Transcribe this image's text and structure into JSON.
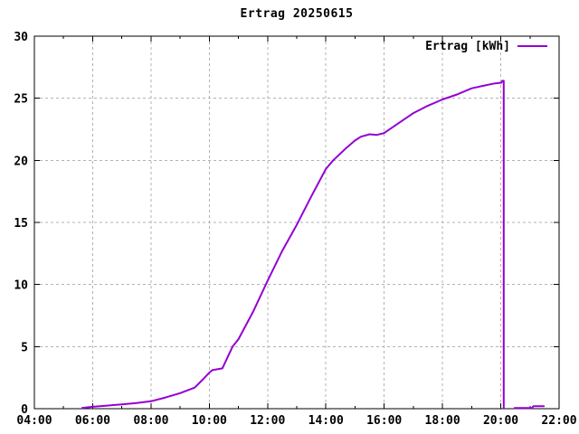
{
  "chart_data": {
    "type": "line",
    "title": "Ertrag 20250615",
    "xlabel": "",
    "ylabel": "",
    "xlim": [
      4,
      22
    ],
    "ylim": [
      0,
      30
    ],
    "grid": true,
    "x_ticks": [
      {
        "h": 4,
        "label": "04:00"
      },
      {
        "h": 6,
        "label": "06:00"
      },
      {
        "h": 8,
        "label": "08:00"
      },
      {
        "h": 10,
        "label": "10:00"
      },
      {
        "h": 12,
        "label": "12:00"
      },
      {
        "h": 14,
        "label": "14:00"
      },
      {
        "h": 16,
        "label": "16:00"
      },
      {
        "h": 18,
        "label": "18:00"
      },
      {
        "h": 20,
        "label": "20:00"
      },
      {
        "h": 22,
        "label": "22:00"
      }
    ],
    "x_minor_step": 1,
    "y_ticks": [
      0,
      5,
      10,
      15,
      20,
      25,
      30
    ],
    "legend": {
      "position": "top-right",
      "entries": [
        {
          "label": "Ertrag [kWh]",
          "color": "#9400d3"
        }
      ]
    },
    "colors": {
      "series": "#9400d3",
      "grid": "#b3b3b3",
      "axis": "#000000",
      "background": "#ffffff"
    },
    "series": [
      {
        "name": "Ertrag [kWh]",
        "color": "#9400d3",
        "segments": [
          [
            [
              5.62,
              0.05
            ],
            [
              6.0,
              0.15
            ],
            [
              6.5,
              0.25
            ],
            [
              7.0,
              0.35
            ],
            [
              7.5,
              0.45
            ],
            [
              8.0,
              0.6
            ],
            [
              8.5,
              0.9
            ],
            [
              9.0,
              1.25
            ],
            [
              9.5,
              1.7
            ],
            [
              9.8,
              2.4
            ],
            [
              10.0,
              2.9
            ],
            [
              10.1,
              3.1
            ],
            [
              10.45,
              3.25
            ],
            [
              10.8,
              5.0
            ],
            [
              11.0,
              5.6
            ],
            [
              11.5,
              7.8
            ],
            [
              12.0,
              10.3
            ],
            [
              12.5,
              12.7
            ],
            [
              13.0,
              14.8
            ],
            [
              13.5,
              17.1
            ],
            [
              14.0,
              19.3
            ],
            [
              14.25,
              20.0
            ],
            [
              14.7,
              21.0
            ],
            [
              15.0,
              21.6
            ],
            [
              15.2,
              21.9
            ],
            [
              15.5,
              22.1
            ],
            [
              15.75,
              22.05
            ],
            [
              16.0,
              22.2
            ],
            [
              16.5,
              23.0
            ],
            [
              17.0,
              23.8
            ],
            [
              17.5,
              24.4
            ],
            [
              18.0,
              24.9
            ],
            [
              18.5,
              25.3
            ],
            [
              19.0,
              25.8
            ],
            [
              19.4,
              26.0
            ],
            [
              19.8,
              26.2
            ],
            [
              20.02,
              26.25
            ],
            [
              20.05,
              26.4
            ],
            [
              20.1,
              26.4
            ],
            [
              20.1,
              0.0
            ]
          ],
          [
            [
              20.45,
              0.05
            ],
            [
              21.07,
              0.05
            ],
            [
              21.12,
              0.2
            ],
            [
              21.5,
              0.2
            ]
          ]
        ]
      }
    ]
  }
}
